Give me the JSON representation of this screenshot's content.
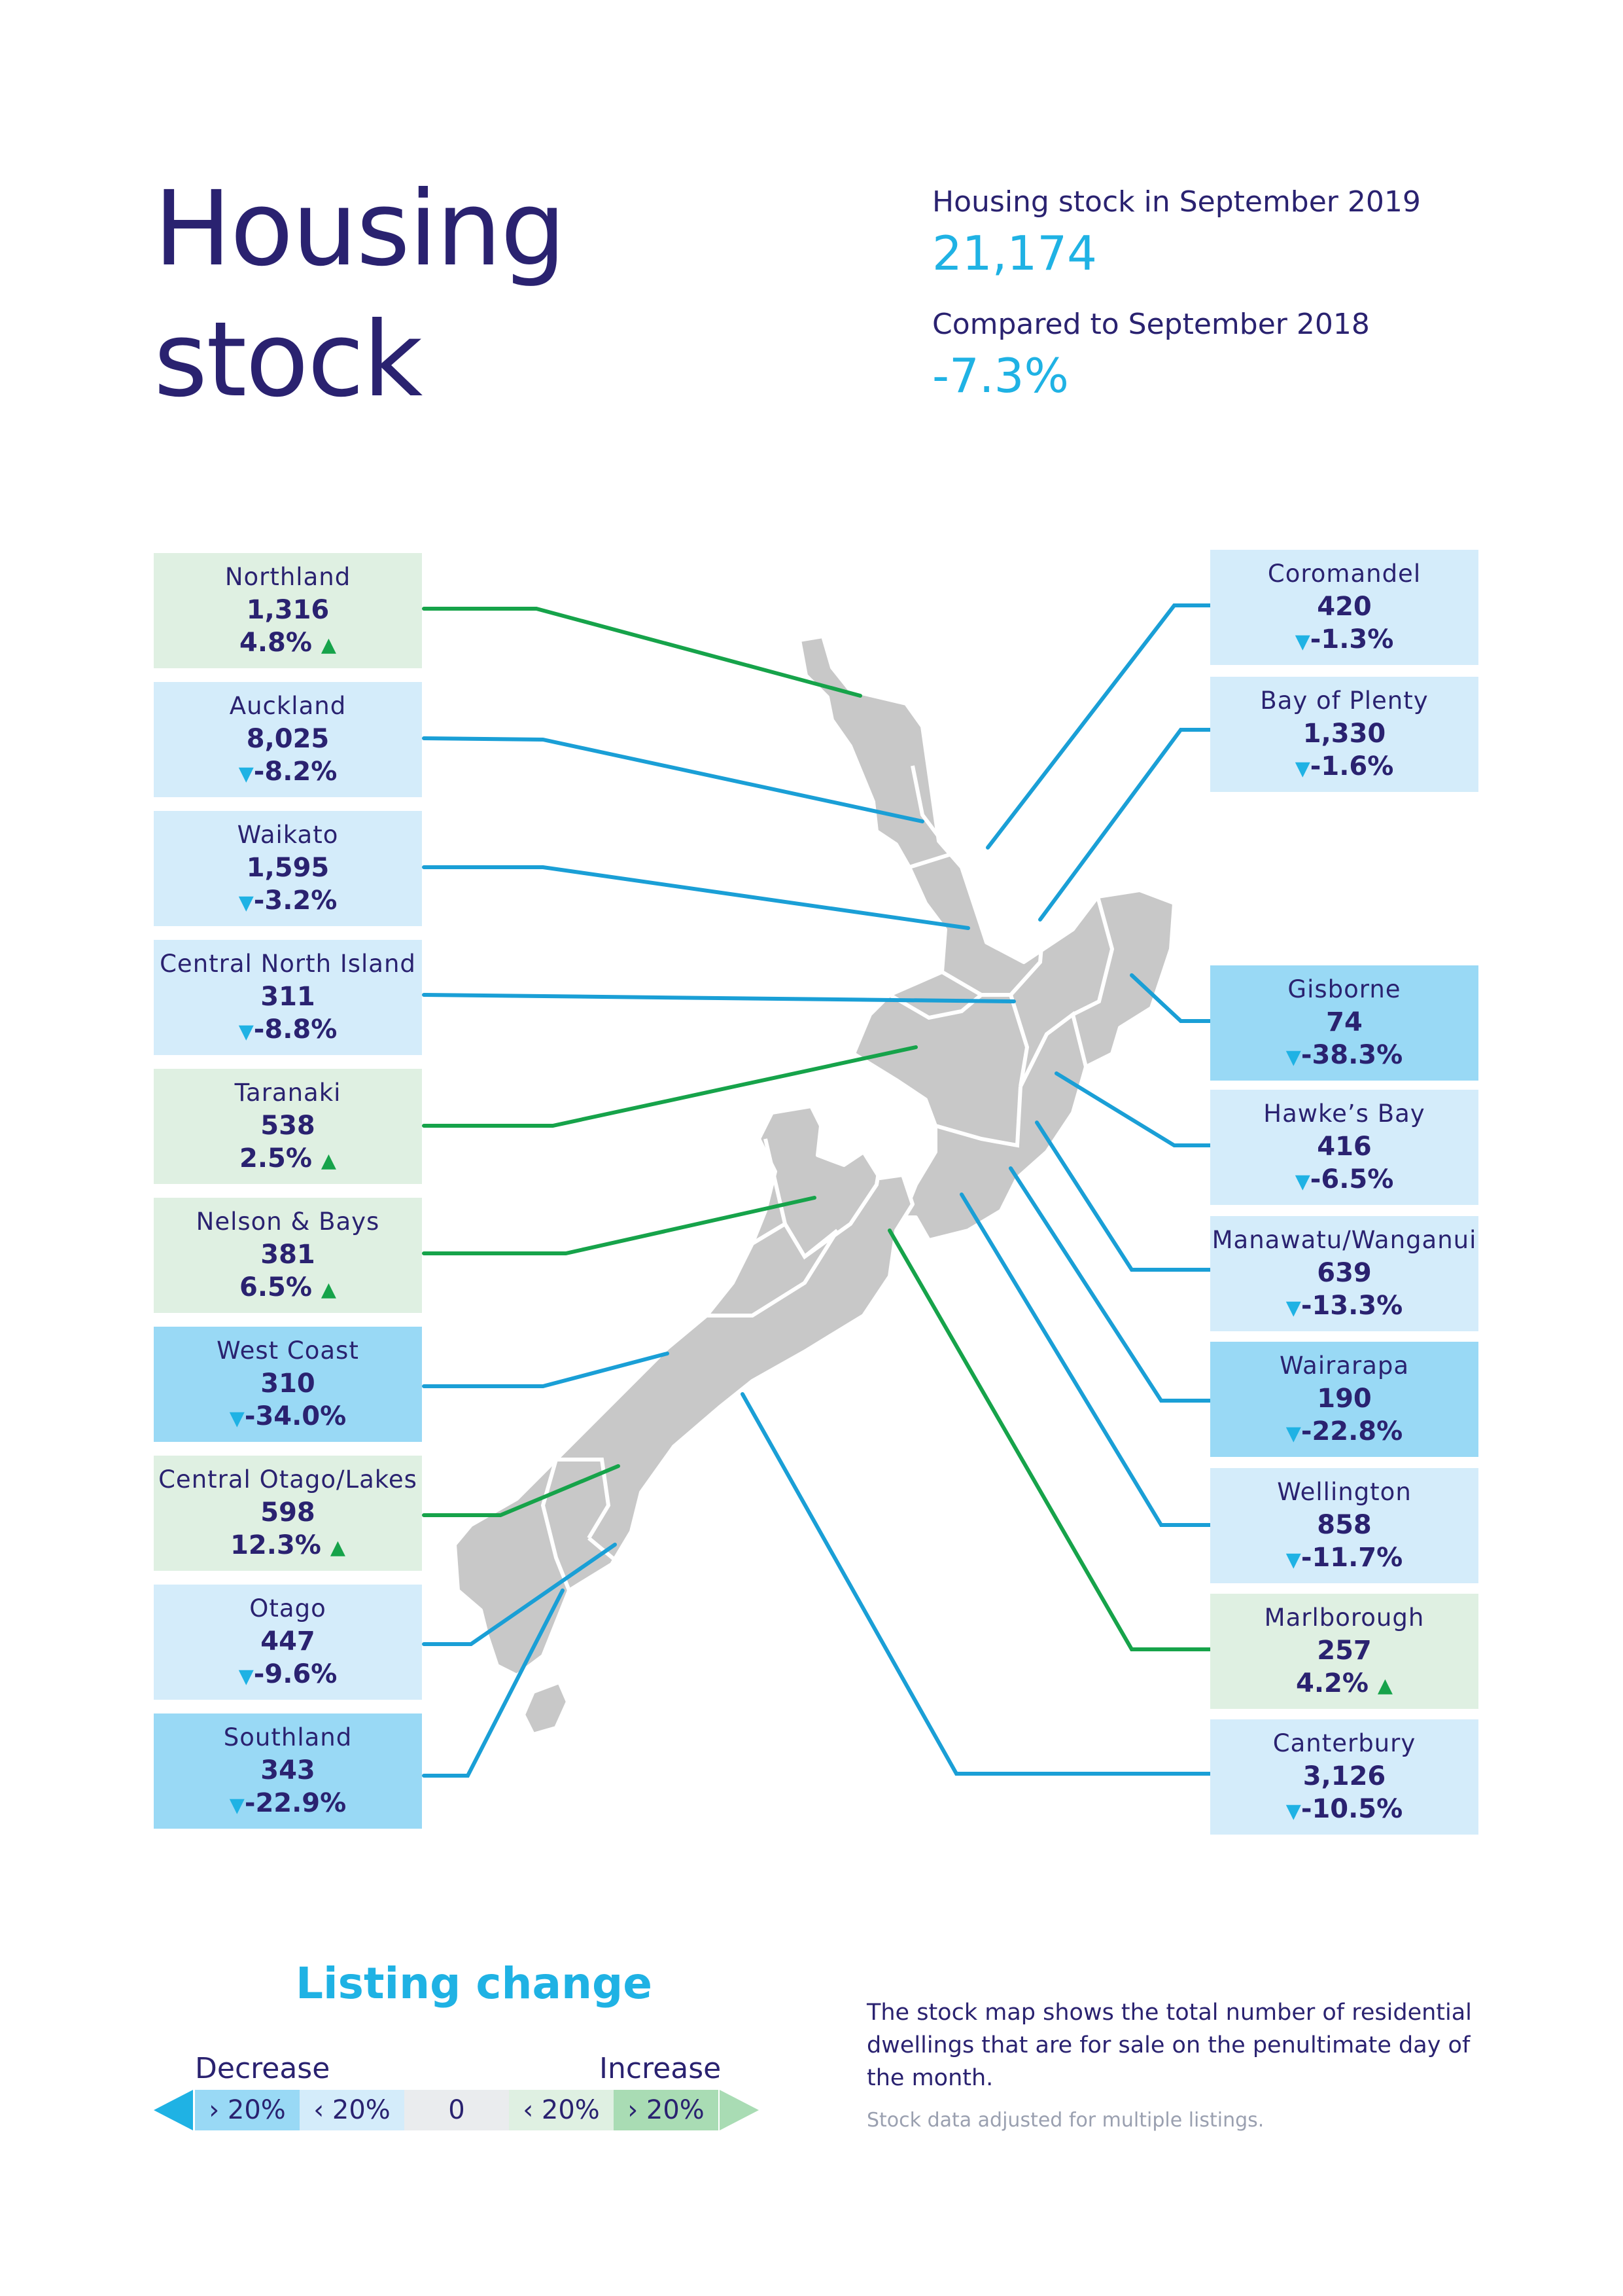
{
  "title": "Housing stock",
  "summary": {
    "stock_label": "Housing stock in September 2019",
    "stock_value": "21,174",
    "compare_label": "Compared to September 2018",
    "compare_value": "-7.3%"
  },
  "colors": {
    "navy": "#2a2270",
    "cyan": "#1fb2e4",
    "green": "#16a34a",
    "increase_box": "#dff0e2",
    "decrease_box": "#d4ecfa",
    "decrease_over_20_box": "#99d9f5",
    "map_grey": "#c8c8c8"
  },
  "regions": [
    {
      "name": "Northland",
      "value": "1,316",
      "change": "4.8%",
      "direction": "up",
      "class": "increase"
    },
    {
      "name": "Auckland",
      "value": "8,025",
      "change": "-8.2%",
      "direction": "down",
      "class": "decrease"
    },
    {
      "name": "Waikato",
      "value": "1,595",
      "change": "-3.2%",
      "direction": "down",
      "class": "decrease"
    },
    {
      "name": "Central North Island",
      "value": "311",
      "change": "-8.8%",
      "direction": "down",
      "class": "decrease"
    },
    {
      "name": "Taranaki",
      "value": "538",
      "change": "2.5%",
      "direction": "up",
      "class": "increase"
    },
    {
      "name": "Nelson & Bays",
      "value": "381",
      "change": "6.5%",
      "direction": "up",
      "class": "increase"
    },
    {
      "name": "West Coast",
      "value": "310",
      "change": "-34.0%",
      "direction": "down",
      "class": "decrease-over-20"
    },
    {
      "name": "Central Otago/Lakes",
      "value": "598",
      "change": "12.3%",
      "direction": "up",
      "class": "increase"
    },
    {
      "name": "Otago",
      "value": "447",
      "change": "-9.6%",
      "direction": "down",
      "class": "decrease"
    },
    {
      "name": "Southland",
      "value": "343",
      "change": "-22.9%",
      "direction": "down",
      "class": "decrease-over-20"
    },
    {
      "name": "Coromandel",
      "value": "420",
      "change": "-1.3%",
      "direction": "down",
      "class": "decrease"
    },
    {
      "name": "Bay of Plenty",
      "value": "1,330",
      "change": "-1.6%",
      "direction": "down",
      "class": "decrease"
    },
    {
      "name": "Gisborne",
      "value": "74",
      "change": "-38.3%",
      "direction": "down",
      "class": "decrease-over-20"
    },
    {
      "name": "Hawke’s Bay",
      "value": "416",
      "change": "-6.5%",
      "direction": "down",
      "class": "decrease"
    },
    {
      "name": "Manawatu/Wanganui",
      "value": "639",
      "change": "-13.3%",
      "direction": "down",
      "class": "decrease"
    },
    {
      "name": "Wairarapa",
      "value": "190",
      "change": "-22.8%",
      "direction": "down",
      "class": "decrease-over-20"
    },
    {
      "name": "Wellington",
      "value": "858",
      "change": "-11.7%",
      "direction": "down",
      "class": "decrease"
    },
    {
      "name": "Marlborough",
      "value": "257",
      "change": "4.2%",
      "direction": "up",
      "class": "increase"
    },
    {
      "name": "Canterbury",
      "value": "3,126",
      "change": "-10.5%",
      "direction": "down",
      "class": "decrease"
    }
  ],
  "legend": {
    "title": "Listing change",
    "decrease_label": "Decrease",
    "increase_label": "Increase",
    "segments": [
      "› 20%",
      "‹ 20%",
      "0",
      "‹ 20%",
      "› 20%"
    ]
  },
  "description": "The stock map shows the total number of residential dwellings that are for sale on the penultimate day of the month.",
  "footnote": "Stock data adjusted for multiple listings."
}
